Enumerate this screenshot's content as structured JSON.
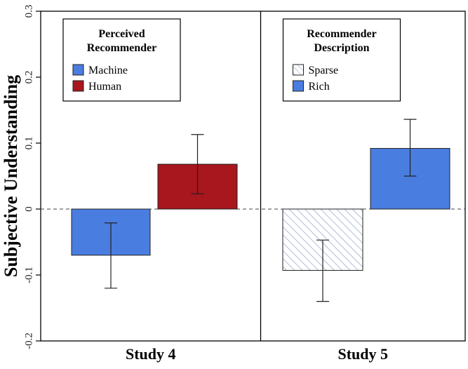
{
  "chart_data": {
    "type": "bar",
    "ylabel": "Subjective Understanding",
    "ylim": [
      -0.2,
      0.3
    ],
    "yticks": [
      -0.2,
      -0.1,
      0,
      0.1,
      0.2,
      0.3
    ],
    "ytick_labels": [
      "-0.2",
      "-0.1",
      "0",
      "0.1",
      "0.2",
      "0.3"
    ],
    "zero_line": "dashed",
    "panels": [
      {
        "label": "Study 4",
        "legend_title_lines": [
          "Perceived",
          "Recommender"
        ],
        "legend_position": "top-left",
        "bars": [
          {
            "name": "Machine",
            "value": -0.07,
            "ci_low": -0.12,
            "ci_high": -0.021,
            "fill": "#4a7de0",
            "pattern": "solid"
          },
          {
            "name": "Human",
            "value": 0.068,
            "ci_low": 0.023,
            "ci_high": 0.113,
            "fill": "#a8161e",
            "pattern": "solid"
          }
        ]
      },
      {
        "label": "Study 5",
        "legend_title_lines": [
          "Recommender",
          "Description"
        ],
        "legend_position": "top-left",
        "bars": [
          {
            "name": "Sparse",
            "value": -0.093,
            "ci_low": -0.14,
            "ci_high": -0.047,
            "fill": "#ffffff",
            "pattern": "hatched",
            "hatch_color": "#8ea4c8"
          },
          {
            "name": "Rich",
            "value": 0.092,
            "ci_low": 0.05,
            "ci_high": 0.136,
            "fill": "#4a7de0",
            "pattern": "solid"
          }
        ]
      }
    ]
  }
}
